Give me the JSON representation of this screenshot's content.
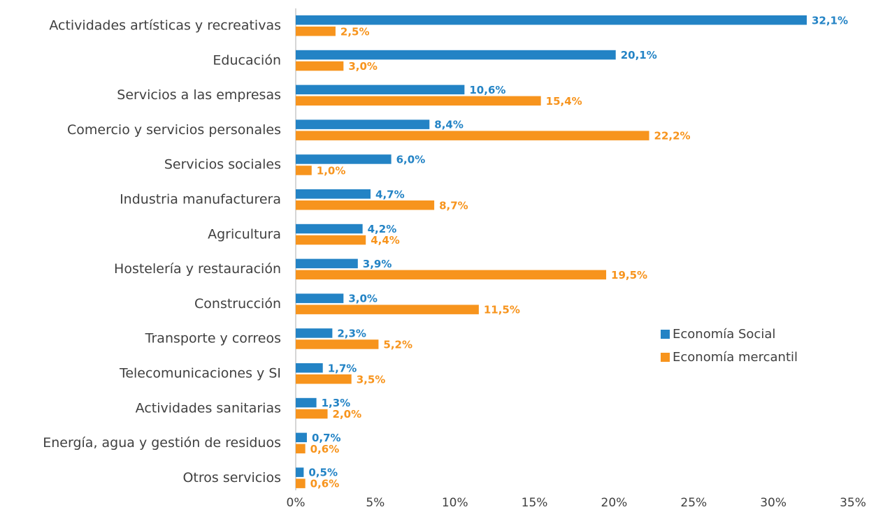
{
  "chart_data": {
    "type": "bar",
    "orientation": "horizontal",
    "categories": [
      "Actividades artísticas y recreativas",
      "Educación",
      "Servicios a las empresas",
      "Comercio y servicios personales",
      "Servicios sociales",
      "Industria manufacturera",
      "Agricultura",
      "Hostelería y restauración",
      "Construcción",
      "Transporte y correos",
      "Telecomunicaciones y SI",
      "Actividades sanitarias",
      "Energía, agua y gestión de residuos",
      "Otros servicios"
    ],
    "series": [
      {
        "name": "Economía Social",
        "color": "#2383c5",
        "values": [
          32.1,
          20.1,
          10.6,
          8.4,
          6.0,
          4.7,
          4.2,
          3.9,
          3.0,
          2.3,
          1.7,
          1.3,
          0.7,
          0.5
        ],
        "value_labels": [
          "32,1%",
          "20,1%",
          "10,6%",
          "8,4%",
          "6,0%",
          "4,7%",
          "4,2%",
          "3,9%",
          "3,0%",
          "2,3%",
          "1,7%",
          "1,3%",
          "0,7%",
          "0,5%"
        ]
      },
      {
        "name": "Economía mercantil",
        "color": "#f7941d",
        "values": [
          2.5,
          3.0,
          15.4,
          22.2,
          1.0,
          8.7,
          4.4,
          19.5,
          11.5,
          5.2,
          3.5,
          2.0,
          0.6,
          0.6
        ],
        "value_labels": [
          "2,5%",
          "3,0%",
          "15,4%",
          "22,2%",
          "1,0%",
          "8,7%",
          "4,4%",
          "19,5%",
          "11,5%",
          "5,2%",
          "3,5%",
          "2,0%",
          "0,6%",
          "0,6%"
        ]
      }
    ],
    "xlim": [
      0,
      35
    ],
    "xticks": [
      {
        "value": 0,
        "label": "0%"
      },
      {
        "value": 5,
        "label": "5%"
      },
      {
        "value": 10,
        "label": "10%"
      },
      {
        "value": 15,
        "label": "15%"
      },
      {
        "value": 20,
        "label": "20%"
      },
      {
        "value": 25,
        "label": "25%"
      },
      {
        "value": 30,
        "label": "30%"
      },
      {
        "value": 35,
        "label": "35%"
      }
    ],
    "grid": false
  }
}
